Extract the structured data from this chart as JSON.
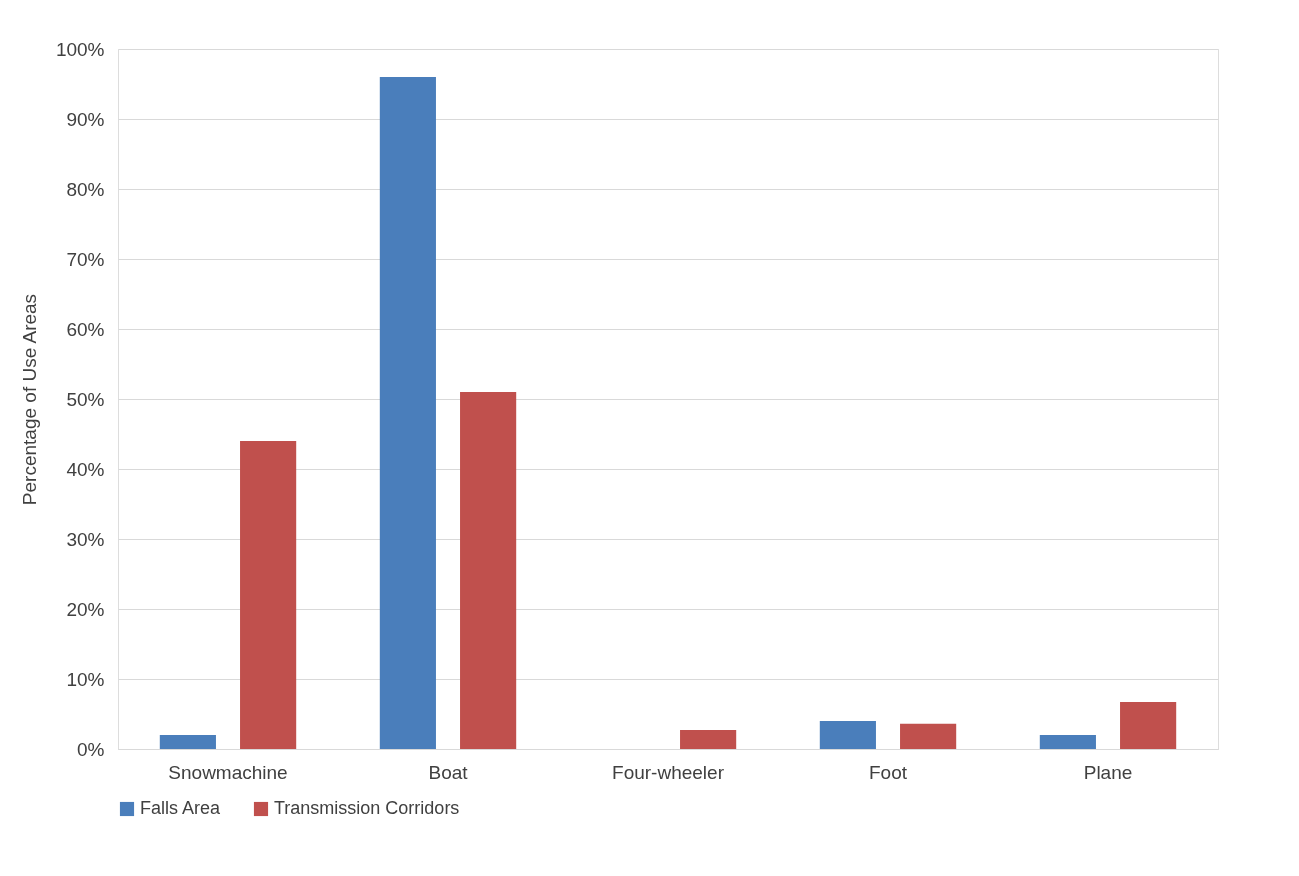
{
  "chart_data": {
    "type": "bar",
    "ylabel": "Percentage of Use Areas",
    "categories": [
      "Snowmachine",
      "Boat",
      "Four-wheeler",
      "Foot",
      "Plane"
    ],
    "series": [
      {
        "name": "Falls Area",
        "color": "#4a7ebb",
        "values": [
          2.0,
          96,
          0,
          4.0,
          2.0
        ]
      },
      {
        "name": "Transmission Corridors",
        "color": "#c0504d",
        "values": [
          44,
          51,
          2.7,
          3.6,
          6.7
        ]
      }
    ],
    "ylim": [
      0,
      100
    ],
    "yticks": [
      {
        "value": 0,
        "label": "0%"
      },
      {
        "value": 10,
        "label": "10%"
      },
      {
        "value": 20,
        "label": "20%"
      },
      {
        "value": 30,
        "label": "30%"
      },
      {
        "value": 40,
        "label": "40%"
      },
      {
        "value": 50,
        "label": "50%"
      },
      {
        "value": 60,
        "label": "60%"
      },
      {
        "value": 70,
        "label": "70%"
      },
      {
        "value": 80,
        "label": "80%"
      },
      {
        "value": 90,
        "label": "90%"
      },
      {
        "value": 100,
        "label": "100%"
      }
    ],
    "grid": "y",
    "legend": "bottom"
  }
}
